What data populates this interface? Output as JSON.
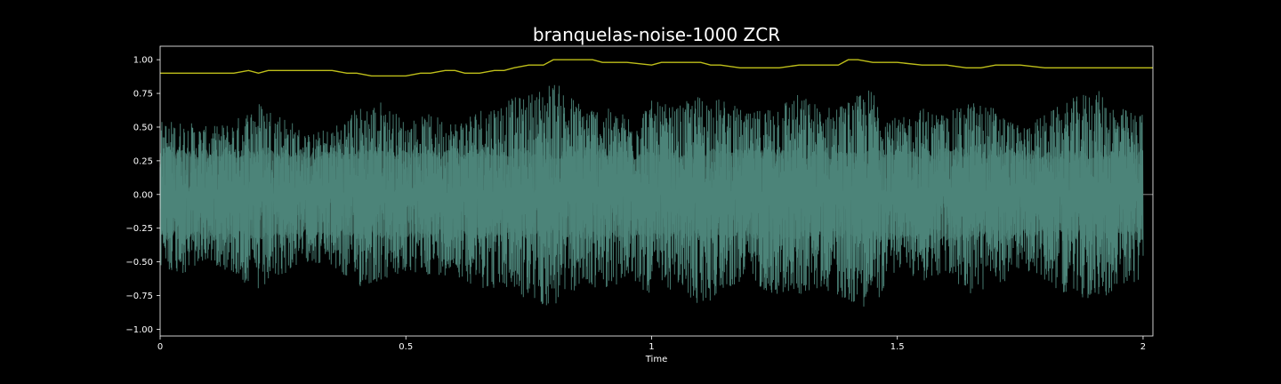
{
  "chart_data": {
    "type": "line",
    "title": "branquelas-noise-1000 ZCR",
    "xlabel": "Time",
    "ylabel": "",
    "xlim": [
      0,
      2.02
    ],
    "ylim": [
      -1.05,
      1.1
    ],
    "x_ticks": [
      0,
      0.5,
      1,
      1.5,
      2
    ],
    "x_tick_labels": [
      "0",
      "0.5",
      "1",
      "1.5",
      "2"
    ],
    "y_ticks": [
      -1.0,
      -0.75,
      -0.5,
      -0.25,
      0.0,
      0.25,
      0.5,
      0.75,
      1.0
    ],
    "y_tick_labels": [
      "−1.00",
      "−0.75",
      "−0.50",
      "−0.25",
      "0.00",
      "0.25",
      "0.50",
      "0.75",
      "1.00"
    ],
    "grid": false,
    "background": "#000000",
    "text_color": "#ffffff",
    "series": [
      {
        "kind": "waveform",
        "color": "#4c8479",
        "fill_color": "#34544c",
        "x_end": 2.0,
        "tail_to": 2.02,
        "envelope": {
          "x": [
            0,
            0.05,
            0.1,
            0.15,
            0.2,
            0.25,
            0.3,
            0.35,
            0.4,
            0.45,
            0.5,
            0.55,
            0.6,
            0.65,
            0.7,
            0.75,
            0.8,
            0.85,
            0.9,
            0.95,
            1.0,
            1.05,
            1.1,
            1.15,
            1.2,
            1.25,
            1.3,
            1.35,
            1.4,
            1.45,
            1.5,
            1.55,
            1.6,
            1.65,
            1.7,
            1.75,
            1.8,
            1.85,
            1.9,
            1.95,
            2.0
          ],
          "upper": [
            0.55,
            0.55,
            0.5,
            0.55,
            0.7,
            0.6,
            0.45,
            0.5,
            0.65,
            0.7,
            0.55,
            0.6,
            0.55,
            0.65,
            0.7,
            0.75,
            0.85,
            0.7,
            0.65,
            0.6,
            0.7,
            0.65,
            0.75,
            0.7,
            0.6,
            0.7,
            0.75,
            0.65,
            0.7,
            0.8,
            0.55,
            0.65,
            0.6,
            0.7,
            0.65,
            0.5,
            0.6,
            0.7,
            0.8,
            0.65,
            0.6
          ],
          "lower": [
            -0.55,
            -0.6,
            -0.5,
            -0.6,
            -0.75,
            -0.6,
            -0.5,
            -0.55,
            -0.7,
            -0.65,
            -0.6,
            -0.6,
            -0.6,
            -0.7,
            -0.7,
            -0.8,
            -0.85,
            -0.7,
            -0.7,
            -0.65,
            -0.75,
            -0.7,
            -0.85,
            -0.7,
            -0.65,
            -0.75,
            -0.75,
            -0.7,
            -0.8,
            -0.85,
            -0.55,
            -0.65,
            -0.6,
            -0.75,
            -0.7,
            -0.55,
            -0.65,
            -0.75,
            -0.8,
            -0.7,
            -0.65
          ],
          "core": 0.3
        }
      },
      {
        "kind": "zcr",
        "color": "#bfbf1a",
        "x": [
          0,
          0.05,
          0.1,
          0.15,
          0.18,
          0.2,
          0.22,
          0.25,
          0.3,
          0.35,
          0.38,
          0.4,
          0.43,
          0.45,
          0.5,
          0.53,
          0.55,
          0.58,
          0.6,
          0.62,
          0.65,
          0.68,
          0.7,
          0.72,
          0.75,
          0.78,
          0.8,
          0.82,
          0.85,
          0.88,
          0.9,
          0.95,
          1.0,
          1.02,
          1.05,
          1.1,
          1.12,
          1.14,
          1.18,
          1.22,
          1.26,
          1.3,
          1.34,
          1.38,
          1.4,
          1.42,
          1.45,
          1.5,
          1.55,
          1.6,
          1.64,
          1.67,
          1.7,
          1.75,
          1.8,
          1.85,
          1.9,
          1.95,
          2.0,
          2.02
        ],
        "y": [
          0.9,
          0.9,
          0.9,
          0.9,
          0.92,
          0.9,
          0.92,
          0.92,
          0.92,
          0.92,
          0.9,
          0.9,
          0.88,
          0.88,
          0.88,
          0.9,
          0.9,
          0.92,
          0.92,
          0.9,
          0.9,
          0.92,
          0.92,
          0.94,
          0.96,
          0.96,
          1.0,
          1.0,
          1.0,
          1.0,
          0.98,
          0.98,
          0.96,
          0.98,
          0.98,
          0.98,
          0.96,
          0.96,
          0.94,
          0.94,
          0.94,
          0.96,
          0.96,
          0.96,
          1.0,
          1.0,
          0.98,
          0.98,
          0.96,
          0.96,
          0.94,
          0.94,
          0.96,
          0.96,
          0.94,
          0.94,
          0.94,
          0.94,
          0.94,
          0.94
        ]
      }
    ]
  }
}
